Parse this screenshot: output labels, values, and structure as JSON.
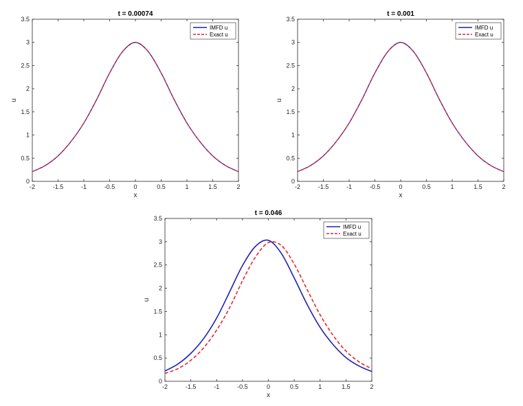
{
  "chart_data": [
    {
      "type": "line",
      "title": "t = 0.00074",
      "xlabel": "x",
      "ylabel": "u",
      "xlim": [
        -2,
        2
      ],
      "ylim": [
        0,
        3.5
      ],
      "xticks": [
        "-2",
        "-1.5",
        "-1",
        "-0.5",
        "0",
        "0.5",
        "1",
        "1.5",
        "2"
      ],
      "yticks": [
        "0",
        "0.5",
        "1",
        "1.5",
        "2",
        "2.5",
        "3",
        "3.5"
      ],
      "grid": false,
      "legend": "top-right",
      "x": [
        -2,
        -1.75,
        -1.5,
        -1.25,
        -1,
        -0.75,
        -0.5,
        -0.25,
        0,
        0.25,
        0.5,
        0.75,
        1,
        1.25,
        1.5,
        1.75,
        2
      ],
      "series": [
        {
          "name": "IMFD u",
          "color": "#1f1fb4",
          "style": "solid",
          "values": [
            0.21,
            0.34,
            0.55,
            0.86,
            1.26,
            1.77,
            2.34,
            2.8,
            3.0,
            2.8,
            2.34,
            1.77,
            1.26,
            0.86,
            0.55,
            0.34,
            0.21
          ]
        },
        {
          "name": "Exact u",
          "color": "#e0262a",
          "style": "dashed",
          "values": [
            0.21,
            0.34,
            0.55,
            0.86,
            1.26,
            1.77,
            2.34,
            2.8,
            3.0,
            2.8,
            2.34,
            1.77,
            1.26,
            0.86,
            0.55,
            0.34,
            0.21
          ]
        }
      ]
    },
    {
      "type": "line",
      "title": "t = 0.001",
      "xlabel": "x",
      "ylabel": "u",
      "xlim": [
        -2,
        2
      ],
      "ylim": [
        0,
        3.5
      ],
      "xticks": [
        "-2",
        "-1.5",
        "-1",
        "-0.5",
        "0",
        "0.5",
        "1",
        "1.5",
        "2"
      ],
      "yticks": [
        "0",
        "0.5",
        "1",
        "1.5",
        "2",
        "2.5",
        "3",
        "3.5"
      ],
      "grid": false,
      "legend": "top-right",
      "x": [
        -2,
        -1.75,
        -1.5,
        -1.25,
        -1,
        -0.75,
        -0.5,
        -0.25,
        0,
        0.25,
        0.5,
        0.75,
        1,
        1.25,
        1.5,
        1.75,
        2
      ],
      "series": [
        {
          "name": "IMFD u",
          "color": "#1f1fb4",
          "style": "solid",
          "values": [
            0.21,
            0.34,
            0.55,
            0.86,
            1.26,
            1.77,
            2.34,
            2.8,
            3.0,
            2.8,
            2.34,
            1.77,
            1.26,
            0.86,
            0.55,
            0.34,
            0.21
          ]
        },
        {
          "name": "Exact u",
          "color": "#e0262a",
          "style": "dashed",
          "values": [
            0.21,
            0.34,
            0.55,
            0.86,
            1.26,
            1.77,
            2.34,
            2.8,
            3.0,
            2.8,
            2.34,
            1.77,
            1.26,
            0.86,
            0.55,
            0.34,
            0.21
          ]
        }
      ]
    },
    {
      "type": "line",
      "title": "t = 0.046",
      "xlabel": "x",
      "ylabel": "u",
      "xlim": [
        -2,
        2
      ],
      "ylim": [
        0,
        3.5
      ],
      "xticks": [
        "-2",
        "-1.5",
        "-1",
        "-0.5",
        "0",
        "0.5",
        "1",
        "1.5",
        "2"
      ],
      "yticks": [
        "0",
        "0.5",
        "1",
        "1.5",
        "2",
        "2.5",
        "3",
        "3.5"
      ],
      "grid": false,
      "legend": "top-right",
      "x": [
        -2,
        -1.75,
        -1.5,
        -1.25,
        -1,
        -0.75,
        -0.5,
        -0.25,
        0,
        0.25,
        0.5,
        0.75,
        1,
        1.25,
        1.5,
        1.75,
        2
      ],
      "series": [
        {
          "name": "IMFD u",
          "color": "#1f1fb4",
          "style": "solid",
          "values": [
            0.22,
            0.37,
            0.6,
            0.92,
            1.36,
            1.92,
            2.49,
            2.9,
            3.03,
            2.75,
            2.22,
            1.65,
            1.16,
            0.79,
            0.51,
            0.33,
            0.21
          ]
        },
        {
          "name": "Exact u",
          "color": "#e0262a",
          "style": "dashed",
          "values": [
            0.17,
            0.27,
            0.45,
            0.72,
            1.1,
            1.58,
            2.16,
            2.67,
            2.98,
            2.92,
            2.52,
            1.97,
            1.43,
            0.99,
            0.65,
            0.42,
            0.27
          ]
        }
      ]
    }
  ]
}
